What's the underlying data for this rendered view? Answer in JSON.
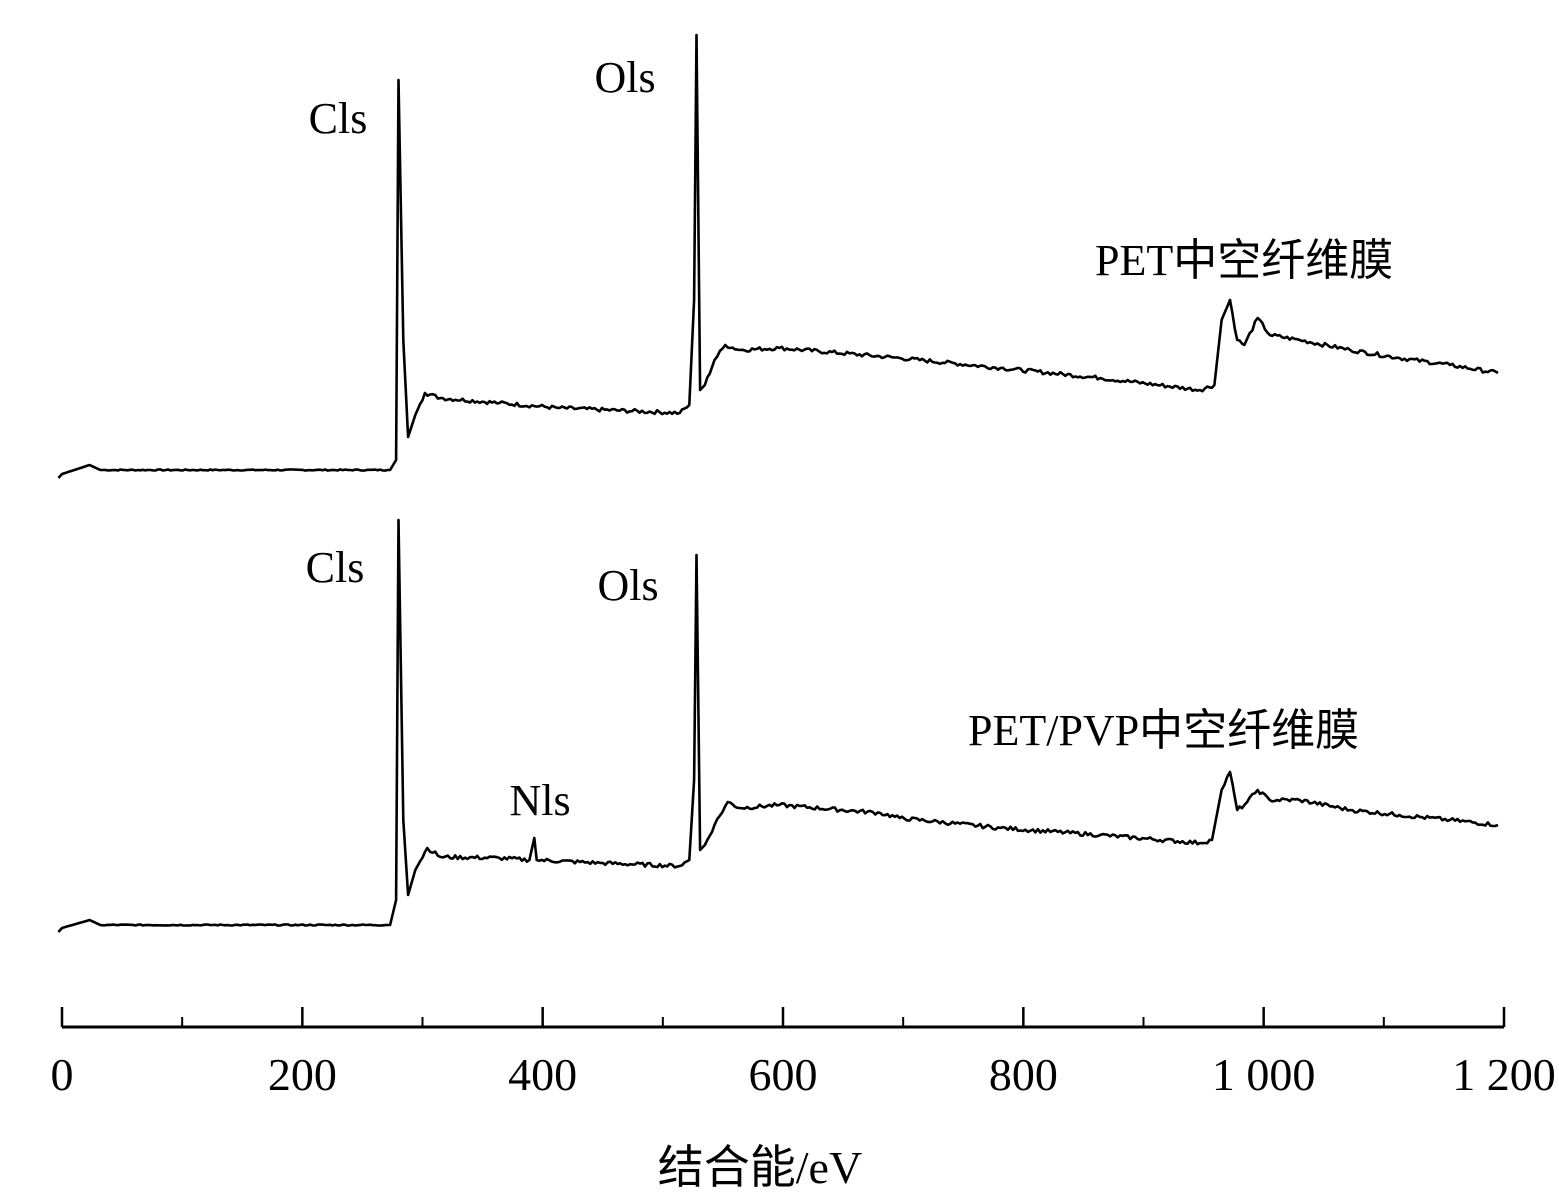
{
  "chart_data": {
    "type": "line",
    "title": "",
    "xlabel": "结合能/eV",
    "ylabel": "",
    "xlim": [
      0,
      1200
    ],
    "ylim": [
      0,
      990
    ],
    "x_ticks_major": [
      0,
      200,
      400,
      600,
      800,
      1000,
      1200
    ],
    "x_tick_labels": [
      "0",
      "200",
      "400",
      "600",
      "800",
      "1 000",
      "1 200"
    ],
    "x_ticks_minor": [
      100,
      300,
      500,
      700,
      900,
      1100
    ],
    "grid": false,
    "y_units": "arbitrary intensity (spectra vertically offset)",
    "series": [
      {
        "name": "PET中空纤维膜",
        "points": [
          [
            -3,
            512
          ],
          [
            0,
            516
          ],
          [
            23,
            525
          ],
          [
            32,
            520
          ],
          [
            273,
            520
          ],
          [
            278,
            530
          ],
          [
            280,
            910
          ],
          [
            284,
            650
          ],
          [
            288,
            553
          ],
          [
            294,
            575
          ],
          [
            302,
            597
          ],
          [
            315,
            592
          ],
          [
            364,
            587
          ],
          [
            414,
            582
          ],
          [
            514,
            577
          ],
          [
            522,
            585
          ],
          [
            526,
            690
          ],
          [
            528,
            955
          ],
          [
            531,
            600
          ],
          [
            535,
            605
          ],
          [
            543,
            630
          ],
          [
            552,
            645
          ],
          [
            564,
            640
          ],
          [
            597,
            642
          ],
          [
            697,
            632
          ],
          [
            781,
            622
          ],
          [
            864,
            612
          ],
          [
            947,
            600
          ],
          [
            959,
            605
          ],
          [
            965,
            670
          ],
          [
            972,
            690
          ],
          [
            978,
            650
          ],
          [
            984,
            645
          ],
          [
            995,
            672
          ],
          [
            1005,
            655
          ],
          [
            1030,
            650
          ],
          [
            1072,
            640
          ],
          [
            1113,
            632
          ],
          [
            1155,
            625
          ],
          [
            1195,
            617
          ]
        ],
        "annotations": [
          {
            "text": "Cls",
            "x": 284
          },
          {
            "text": "Ols",
            "x": 531
          }
        ]
      },
      {
        "name": "PET/PVP中空纤维膜",
        "points": [
          [
            -3,
            58
          ],
          [
            0,
            62
          ],
          [
            23,
            70
          ],
          [
            32,
            65
          ],
          [
            273,
            65
          ],
          [
            278,
            90
          ],
          [
            280,
            470
          ],
          [
            284,
            170
          ],
          [
            288,
            95
          ],
          [
            294,
            120
          ],
          [
            304,
            142
          ],
          [
            315,
            133
          ],
          [
            364,
            132
          ],
          [
            389,
            130
          ],
          [
            393,
            152
          ],
          [
            395,
            130
          ],
          [
            448,
            127
          ],
          [
            514,
            124
          ],
          [
            522,
            130
          ],
          [
            526,
            210
          ],
          [
            528,
            435
          ],
          [
            531,
            140
          ],
          [
            535,
            145
          ],
          [
            543,
            165
          ],
          [
            554,
            188
          ],
          [
            564,
            182
          ],
          [
            597,
            185
          ],
          [
            681,
            177
          ],
          [
            697,
            172
          ],
          [
            781,
            162
          ],
          [
            864,
            155
          ],
          [
            947,
            147
          ],
          [
            957,
            150
          ],
          [
            965,
            200
          ],
          [
            972,
            218
          ],
          [
            978,
            180
          ],
          [
            984,
            185
          ],
          [
            995,
            200
          ],
          [
            1005,
            190
          ],
          [
            1030,
            190
          ],
          [
            1072,
            180
          ],
          [
            1113,
            175
          ],
          [
            1155,
            170
          ],
          [
            1195,
            165
          ]
        ],
        "annotations": [
          {
            "text": "Cls",
            "x": 284
          },
          {
            "text": "Nls",
            "x": 399
          },
          {
            "text": "Ols",
            "x": 531
          }
        ]
      }
    ]
  }
}
